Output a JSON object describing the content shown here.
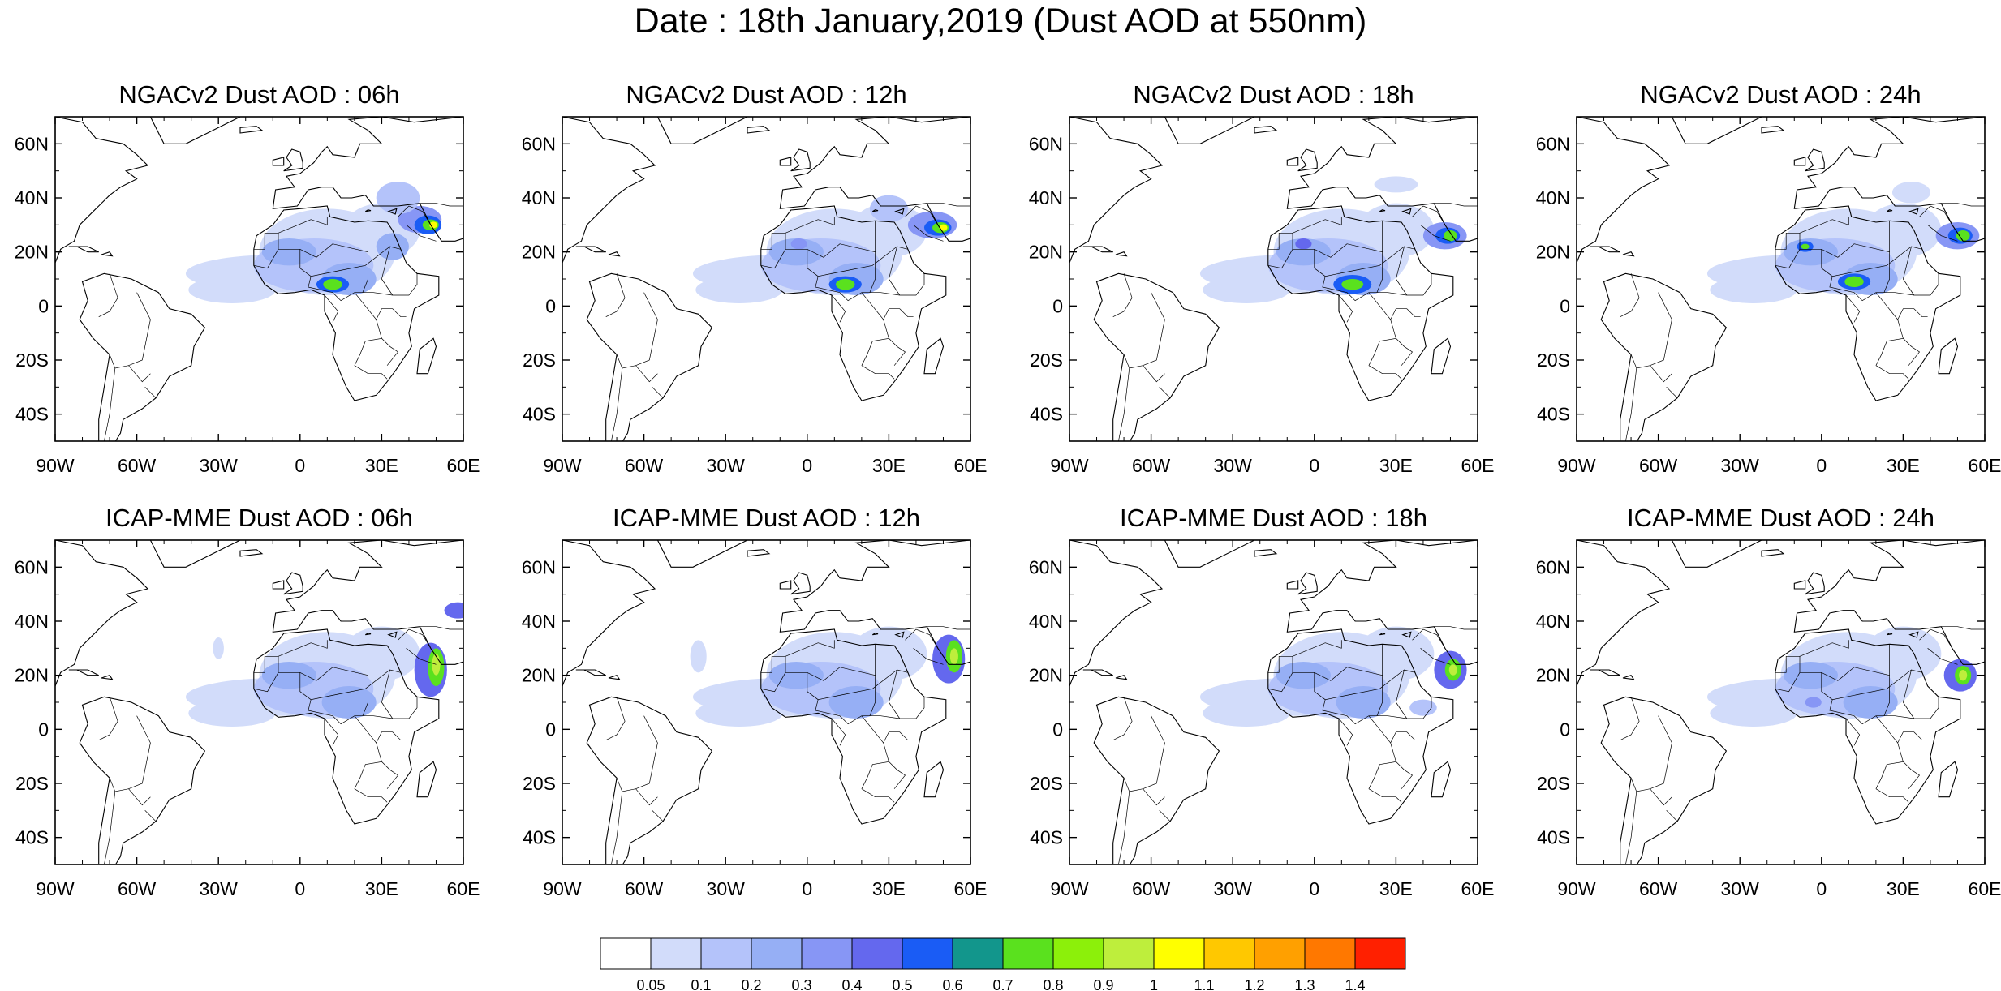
{
  "title": "Date : 18th January,2019 (Dust AOD at 550nm)",
  "axes": {
    "lon_ticks": [
      "90W",
      "60W",
      "30W",
      "0",
      "30E",
      "60E"
    ],
    "lat_ticks": [
      "60N",
      "40N",
      "20N",
      "0",
      "20S",
      "40S"
    ],
    "lon_range": [
      -90,
      60
    ],
    "lat_range": [
      -50,
      70
    ]
  },
  "panels": [
    {
      "title": "NGACv2 Dust AOD : 06h",
      "model": "NGACv2",
      "hour": "06h"
    },
    {
      "title": "NGACv2 Dust AOD : 12h",
      "model": "NGACv2",
      "hour": "12h"
    },
    {
      "title": "NGACv2 Dust AOD : 18h",
      "model": "NGACv2",
      "hour": "18h"
    },
    {
      "title": "NGACv2 Dust AOD : 24h",
      "model": "NGACv2",
      "hour": "24h"
    },
    {
      "title": "ICAP-MME Dust AOD : 06h",
      "model": "ICAP-MME",
      "hour": "06h"
    },
    {
      "title": "ICAP-MME Dust AOD : 12h",
      "model": "ICAP-MME",
      "hour": "12h"
    },
    {
      "title": "ICAP-MME Dust AOD : 18h",
      "model": "ICAP-MME",
      "hour": "18h"
    },
    {
      "title": "ICAP-MME Dust AOD : 24h",
      "model": "ICAP-MME",
      "hour": "24h"
    }
  ],
  "colorbar": {
    "colors": [
      "#ffffff",
      "#d2dcfa",
      "#b4c3fa",
      "#96aff5",
      "#8796f5",
      "#6468ee",
      "#1a5cf5",
      "#12968c",
      "#5ae11e",
      "#8cf00a",
      "#beee3c",
      "#ffff00",
      "#ffc800",
      "#ffa000",
      "#ff7800",
      "#ff2000"
    ],
    "labels": [
      "0.05",
      "0.1",
      "0.2",
      "0.3",
      "0.4",
      "0.5",
      "0.6",
      "0.7",
      "0.8",
      "0.9",
      "1",
      "1.1",
      "1.2",
      "1.3",
      "1.4"
    ]
  }
}
